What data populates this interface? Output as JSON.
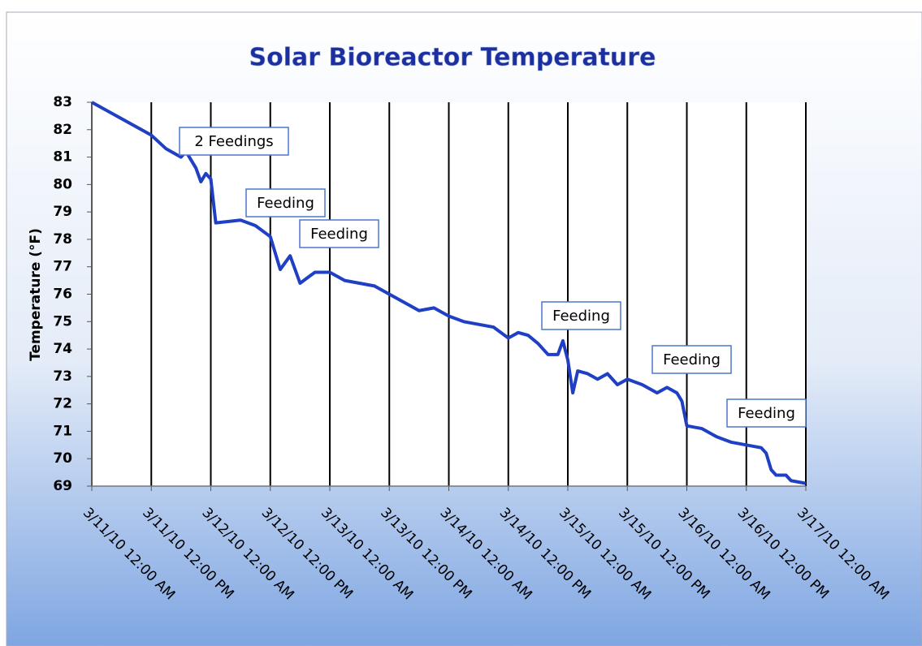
{
  "chart_data": {
    "type": "line",
    "title": "Solar Bioreactor Temperature",
    "y_label": "Temperature (°F)",
    "x": [
      "3/11/10 12:00 AM",
      "3/11/10 6:00 AM",
      "3/11/10 12:00 PM",
      "3/11/10 3:00 PM",
      "3/11/10 6:00 PM",
      "3/11/10 7:00 PM",
      "3/11/10 9:00 PM",
      "3/11/10 10:00 PM",
      "3/11/10 11:00 PM",
      "3/12/10 12:00 AM",
      "3/12/10 1:00 AM",
      "3/12/10 6:00 AM",
      "3/12/10 9:00 AM",
      "3/12/10 12:00 PM",
      "3/12/10 2:00 PM",
      "3/12/10 4:00 PM",
      "3/12/10 6:00 PM",
      "3/12/10 9:00 PM",
      "3/13/10 12:00 AM",
      "3/13/10 3:00 AM",
      "3/13/10 6:00 AM",
      "3/13/10 9:00 AM",
      "3/13/10 12:00 PM",
      "3/13/10 3:00 PM",
      "3/13/10 6:00 PM",
      "3/13/10 9:00 PM",
      "3/14/10 12:00 AM",
      "3/14/10 3:00 AM",
      "3/14/10 6:00 AM",
      "3/14/10 9:00 AM",
      "3/14/10 12:00 PM",
      "3/14/10 2:00 PM",
      "3/14/10 4:00 PM",
      "3/14/10 6:00 PM",
      "3/14/10 8:00 PM",
      "3/14/10 10:00 PM",
      "3/14/10 11:00 PM",
      "3/15/10 12:00 AM",
      "3/15/10 1:00 AM",
      "3/15/10 2:00 AM",
      "3/15/10 4:00 AM",
      "3/15/10 6:00 AM",
      "3/15/10 8:00 AM",
      "3/15/10 10:00 AM",
      "3/15/10 12:00 PM",
      "3/15/10 3:00 PM",
      "3/15/10 6:00 PM",
      "3/15/10 8:00 PM",
      "3/15/10 10:00 PM",
      "3/15/10 11:00 PM",
      "3/16/10 12:00 AM",
      "3/16/10 3:00 AM",
      "3/16/10 6:00 AM",
      "3/16/10 9:00 AM",
      "3/16/10 12:00 PM",
      "3/16/10 3:00 PM",
      "3/16/10 4:00 PM",
      "3/16/10 5:00 PM",
      "3/16/10 6:00 PM",
      "3/16/10 8:00 PM",
      "3/16/10 9:00 PM",
      "3/17/10 12:00 AM"
    ],
    "series": [
      {
        "name": "Temperature",
        "color": "#1f3fc4",
        "values": [
          83.0,
          82.4,
          81.8,
          81.3,
          81.0,
          81.2,
          80.6,
          80.1,
          80.4,
          80.2,
          78.6,
          78.7,
          78.5,
          78.1,
          76.9,
          77.4,
          76.4,
          76.8,
          76.8,
          76.5,
          76.4,
          76.3,
          76.0,
          75.7,
          75.4,
          75.5,
          75.2,
          75.0,
          74.9,
          74.8,
          74.4,
          74.6,
          74.5,
          74.2,
          73.8,
          73.8,
          74.3,
          73.6,
          72.4,
          73.2,
          73.1,
          72.9,
          73.1,
          72.7,
          72.9,
          72.7,
          72.4,
          72.6,
          72.4,
          72.1,
          71.2,
          71.1,
          70.8,
          70.6,
          70.5,
          70.4,
          70.2,
          69.6,
          69.4,
          69.4,
          69.2,
          69.1
        ]
      }
    ],
    "xlim": [
      "3/11/10 12:00 AM",
      "3/17/10 12:00 AM"
    ],
    "xticks": [
      "3/11/10 12:00 AM",
      "3/11/10 12:00 PM",
      "3/12/10 12:00 AM",
      "3/12/10 12:00 PM",
      "3/13/10 12:00 AM",
      "3/13/10 12:00 PM",
      "3/14/10 12:00 AM",
      "3/14/10 12:00 PM",
      "3/15/10 12:00 AM",
      "3/15/10 12:00 PM",
      "3/16/10 12:00 AM",
      "3/16/10 12:00 PM",
      "3/17/10 12:00 AM"
    ],
    "ylim": [
      69,
      83
    ],
    "yticks": [
      69,
      70,
      71,
      72,
      73,
      74,
      75,
      76,
      77,
      78,
      79,
      80,
      81,
      82,
      83
    ],
    "grid": "x",
    "annotations": [
      "2 Feedings",
      "Feeding",
      "Feeding",
      "Feeding",
      "Feeding",
      "Feeding"
    ]
  }
}
